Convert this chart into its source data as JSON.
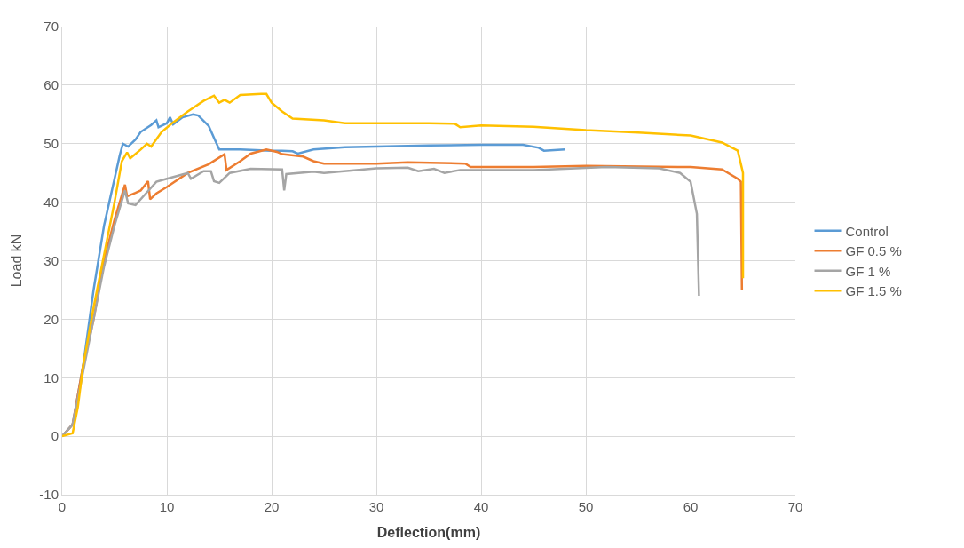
{
  "chart_data": {
    "type": "line",
    "xlabel": "Deflection(mm)",
    "ylabel": "Load kN",
    "xlim": [
      0,
      70
    ],
    "xticks": [
      0,
      10,
      20,
      30,
      40,
      50,
      60,
      70
    ],
    "ylim": [
      -10,
      70
    ],
    "yticks": [
      -10,
      0,
      10,
      20,
      30,
      40,
      50,
      60,
      70
    ],
    "grid": true,
    "legend": "right",
    "marker": "none",
    "line_style": "solid",
    "series": [
      {
        "name": "Control",
        "color": "#5b9bd5",
        "x": [
          0,
          1,
          2,
          3,
          4,
          4.5,
          5,
          5.5,
          5.8,
          6.3,
          7,
          7.5,
          8.5,
          9,
          9.2,
          10,
          10.3,
          10.6,
          11.5,
          12.5,
          13,
          14,
          14.5,
          15,
          17,
          20,
          21,
          22,
          22.5,
          24,
          27,
          30,
          35,
          40,
          44,
          45.5,
          46,
          48
        ],
        "values": [
          0,
          2,
          12,
          25,
          36,
          40,
          44,
          48,
          50,
          49.5,
          50.7,
          52,
          53.2,
          54,
          52.8,
          53.5,
          54.5,
          53.3,
          54.5,
          55,
          54.8,
          53,
          51,
          49,
          49,
          48.8,
          48.8,
          48.7,
          48.3,
          49,
          49.4,
          49.5,
          49.7,
          49.8,
          49.8,
          49.3,
          48.8,
          49
        ]
      },
      {
        "name": "GF 0.5 %",
        "color": "#ed7d31",
        "x": [
          0,
          1,
          2,
          3,
          4,
          5,
          6,
          6.2,
          7,
          7.5,
          8.2,
          8.4,
          9,
          10,
          12,
          14,
          15.5,
          15.7,
          17,
          18,
          19.5,
          20.5,
          21,
          23,
          24,
          25,
          30,
          33,
          38.5,
          39,
          45,
          50,
          60,
          63,
          64.5,
          64.8,
          64.9
        ],
        "values": [
          0,
          2,
          12,
          20,
          30,
          37,
          43,
          41,
          41.6,
          42,
          43.6,
          40.5,
          41.5,
          42.6,
          45,
          46.5,
          48.2,
          45.5,
          47,
          48.3,
          49,
          48.6,
          48.2,
          47.8,
          47,
          46.6,
          46.6,
          46.8,
          46.6,
          46,
          46,
          46.2,
          46,
          45.6,
          44,
          43.5,
          25
        ]
      },
      {
        "name": "GF 1 %",
        "color": "#a5a5a5",
        "x": [
          0,
          1,
          2,
          3,
          4,
          5,
          6,
          6.3,
          7,
          8,
          9,
          10,
          12,
          12.3,
          13.5,
          14.2,
          14.5,
          15,
          16,
          18,
          21,
          21.2,
          21.4,
          24,
          25,
          30,
          33,
          34,
          35.5,
          36.5,
          38,
          45,
          52,
          57,
          59,
          60,
          60.6,
          60.8
        ],
        "values": [
          0,
          2,
          11,
          20,
          29,
          36,
          42,
          39.8,
          39.5,
          41.5,
          43.5,
          44,
          45,
          44,
          45.3,
          45.3,
          43.6,
          43.3,
          45,
          45.7,
          45.6,
          42,
          44.8,
          45.2,
          45,
          45.8,
          45.9,
          45.3,
          45.7,
          45,
          45.5,
          45.5,
          46,
          45.8,
          45,
          43.5,
          38,
          24
        ]
      },
      {
        "name": "GF 1.5 %",
        "color": "#ffc000",
        "x": [
          0,
          1,
          1.5,
          2,
          3,
          4,
          5,
          5.7,
          6.2,
          6.5,
          7.5,
          8.1,
          8.5,
          9.5,
          10.5,
          12,
          13.5,
          14.5,
          15,
          15.5,
          16,
          17,
          19,
          19.5,
          20,
          21,
          22,
          25,
          27,
          35,
          37.5,
          38,
          40,
          45,
          50,
          55,
          60,
          63,
          64.5,
          65,
          65
        ],
        "values": [
          0,
          0.5,
          5,
          12,
          22,
          31,
          40,
          47,
          48.5,
          47.5,
          49,
          50,
          49.5,
          52,
          53.5,
          55.5,
          57.3,
          58.2,
          57,
          57.5,
          57,
          58.3,
          58.5,
          58.5,
          57,
          55.5,
          54.3,
          54,
          53.5,
          53.5,
          53.4,
          52.8,
          53.1,
          52.9,
          52.3,
          51.9,
          51.4,
          50.2,
          48.8,
          45,
          27
        ]
      }
    ]
  }
}
